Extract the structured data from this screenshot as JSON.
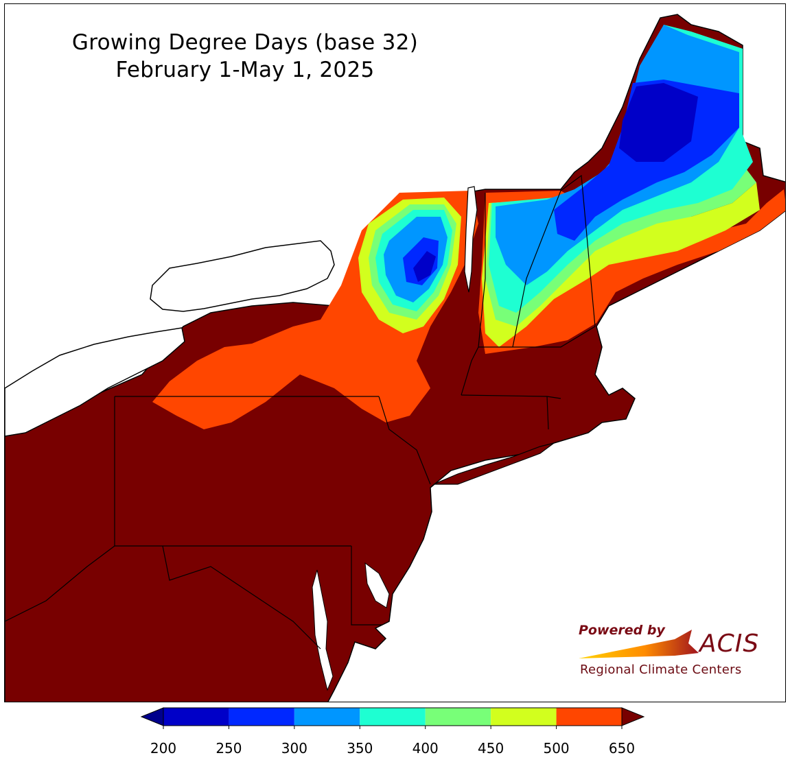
{
  "title": {
    "line1": "Growing Degree Days (base 32)",
    "line2": "February 1-May 1, 2025"
  },
  "logo": {
    "powered_by": "Powered by",
    "brand": "ACIS",
    "subtitle": "Regional Climate Centers"
  },
  "colorbar": {
    "ticks": [
      "200",
      "250",
      "300",
      "350",
      "400",
      "450",
      "500",
      "650"
    ],
    "bins": [
      {
        "min": 200,
        "max": 250,
        "color": "#0000c8"
      },
      {
        "min": 250,
        "max": 300,
        "color": "#0028ff"
      },
      {
        "min": 300,
        "max": 350,
        "color": "#0096ff"
      },
      {
        "min": 350,
        "max": 400,
        "color": "#1effd2"
      },
      {
        "min": 400,
        "max": 450,
        "color": "#78ff78"
      },
      {
        "min": 450,
        "max": 500,
        "color": "#d2ff1e"
      },
      {
        "min": 500,
        "max": 650,
        "color": "#ff4600"
      }
    ],
    "under_color": "#00008c",
    "over_color": "#780000"
  },
  "legend_colors": {
    "high": "#780000",
    "land_outline": "#000000",
    "water": "#ffffff"
  }
}
